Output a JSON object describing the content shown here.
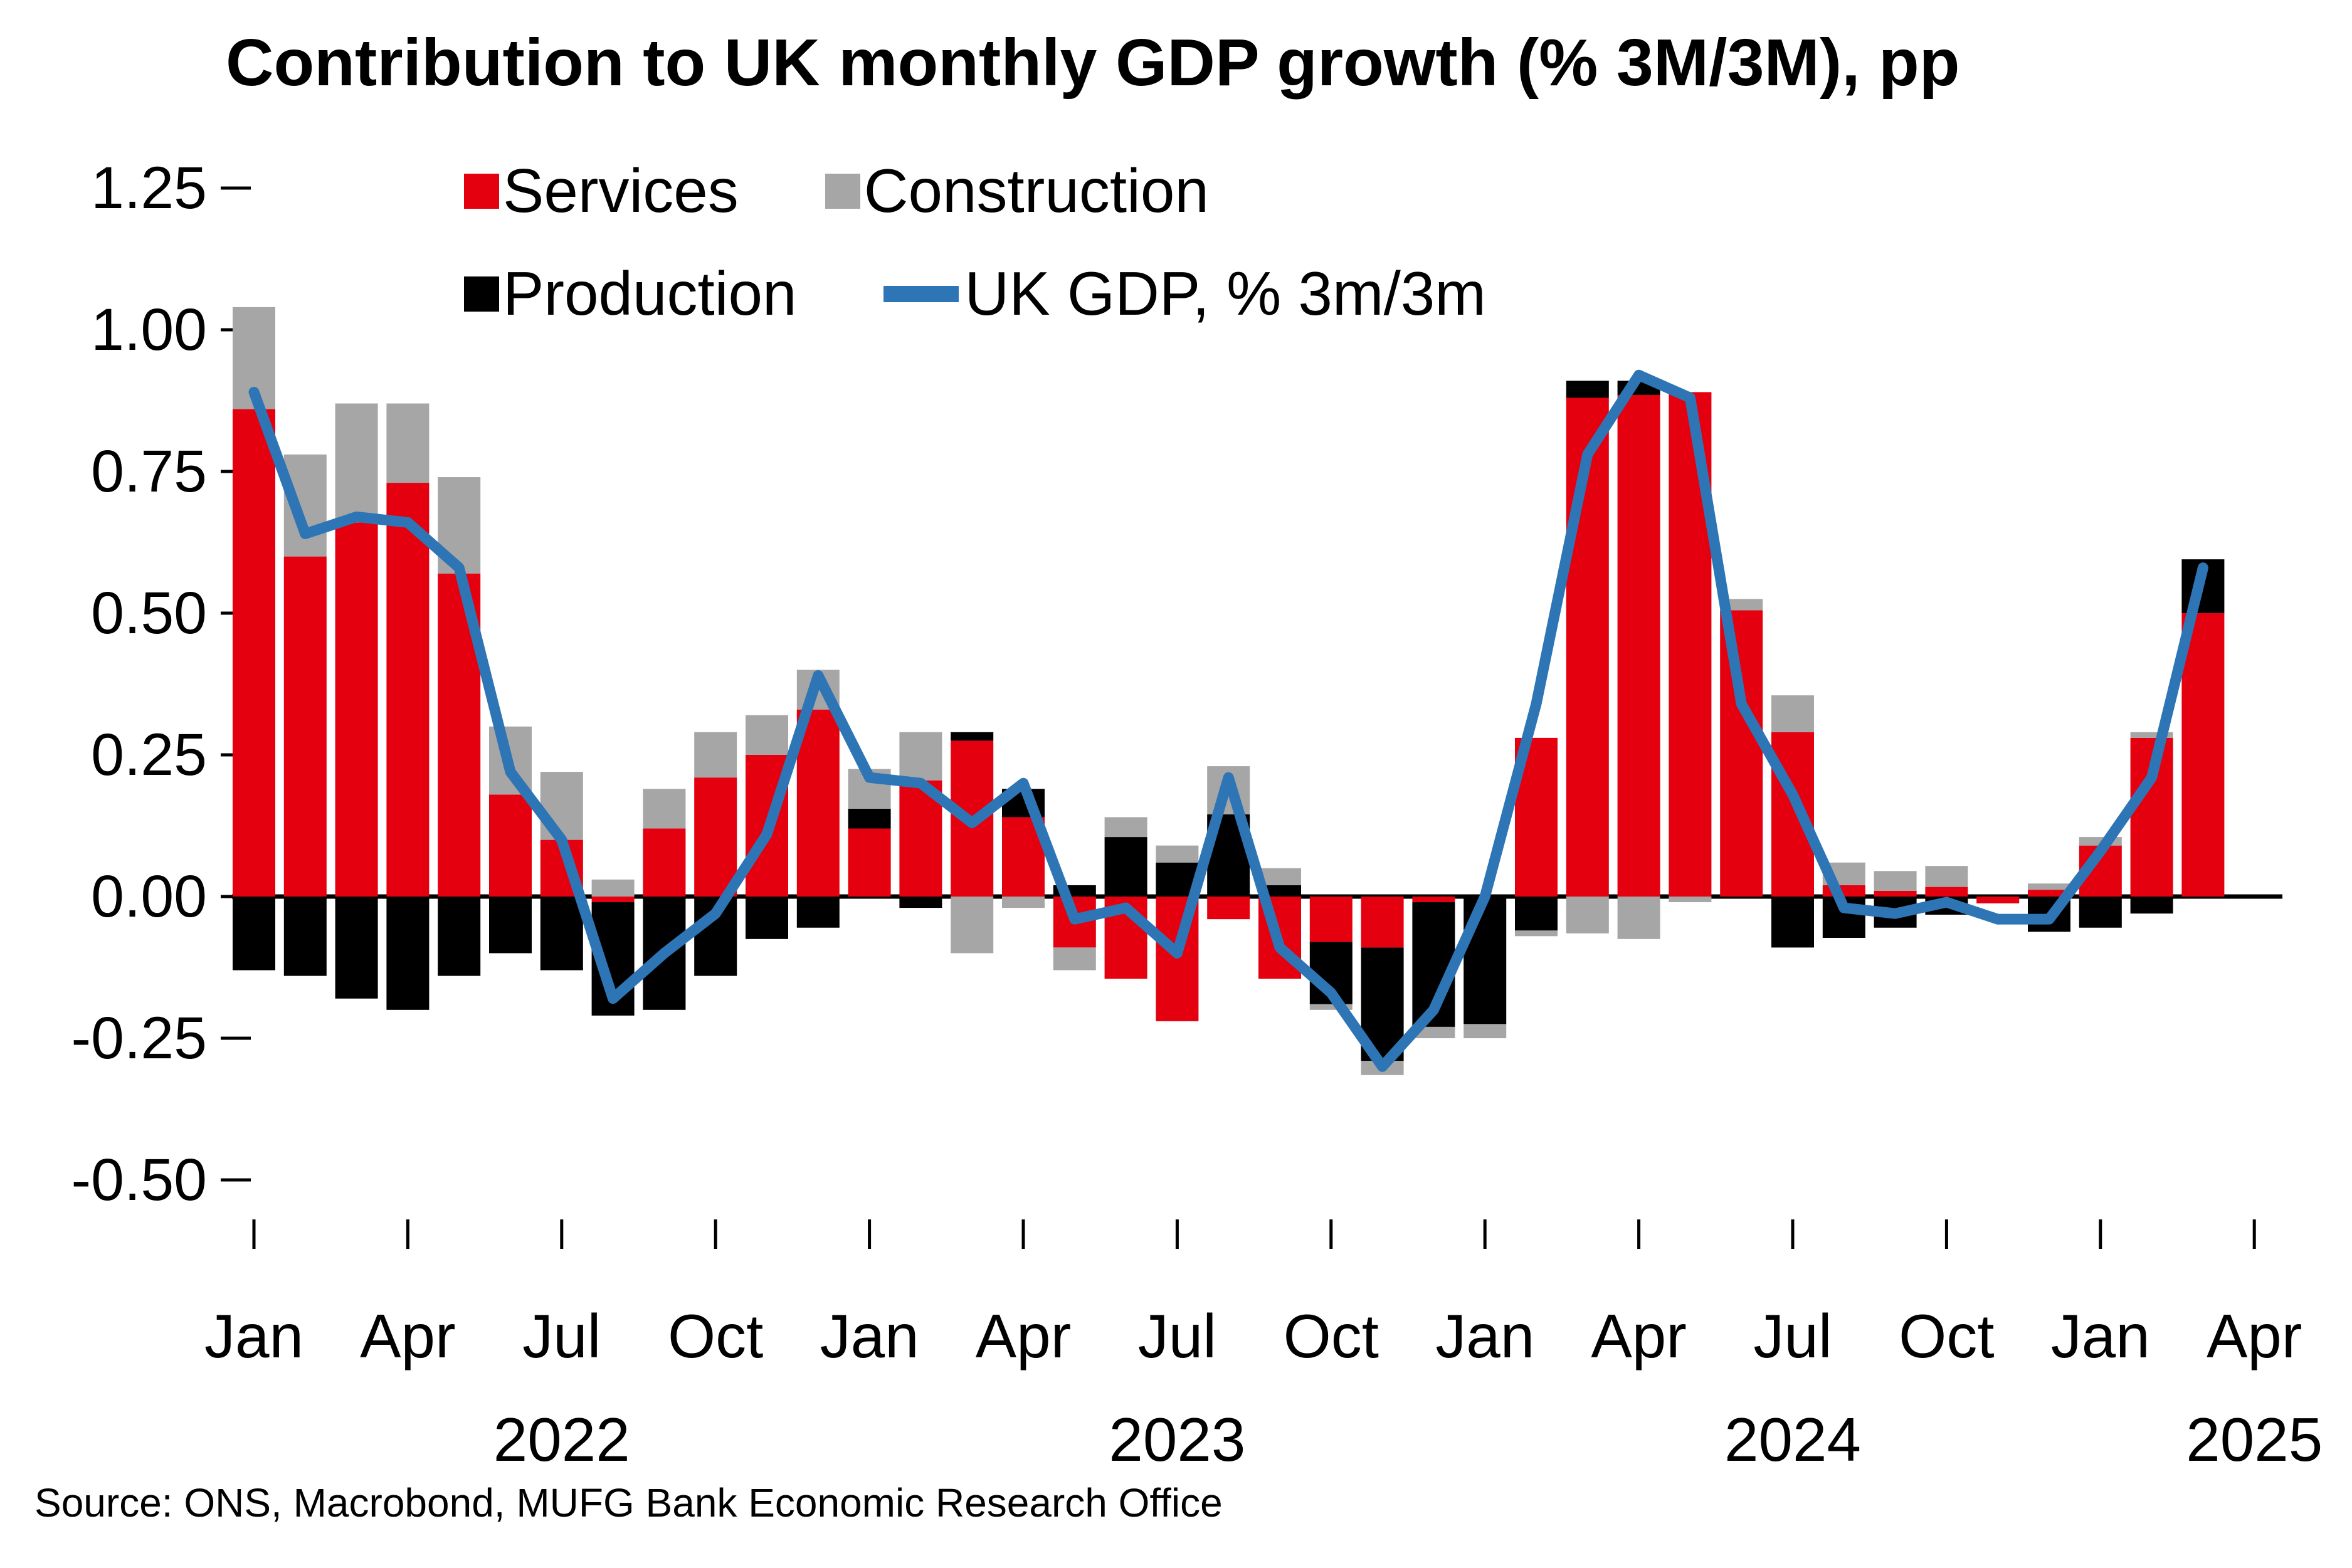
{
  "title": "Contribution to UK monthly GDP growth (% 3M/3M), pp",
  "source": "Source: ONS, Macrobond, MUFG Bank Economic Research Office",
  "colors": {
    "services": "#e4000f",
    "construction": "#a6a6a6",
    "production": "#000000",
    "gdp_line": "#2e75b6",
    "axis": "#000000",
    "background": "#ffffff"
  },
  "legend": {
    "services": "Services",
    "construction": "Construction",
    "production": "Production",
    "gdp": "UK GDP, % 3m/3m"
  },
  "chart_data": {
    "type": "bar",
    "stacked": true,
    "title": "Contribution to UK monthly GDP growth (% 3M/3M), pp",
    "xlabel": "",
    "ylabel": "",
    "ylim": [
      -0.5,
      1.25
    ],
    "grid": false,
    "legend_position": "top-left-inside",
    "categories": [
      "Jan 2022",
      "Feb 2022",
      "Mar 2022",
      "Apr 2022",
      "May 2022",
      "Jun 2022",
      "Jul 2022",
      "Aug 2022",
      "Sep 2022",
      "Oct 2022",
      "Nov 2022",
      "Dec 2022",
      "Jan 2023",
      "Feb 2023",
      "Mar 2023",
      "Apr 2023",
      "May 2023",
      "Jun 2023",
      "Jul 2023",
      "Aug 2023",
      "Sep 2023",
      "Oct 2023",
      "Nov 2023",
      "Dec 2023",
      "Jan 2024",
      "Feb 2024",
      "Mar 2024",
      "Apr 2024",
      "May 2024",
      "Jun 2024",
      "Jul 2024",
      "Aug 2024",
      "Sep 2024",
      "Oct 2024",
      "Nov 2024",
      "Dec 2024",
      "Jan 2025",
      "Feb 2025",
      "Mar 2025"
    ],
    "series": [
      {
        "name": "Services",
        "values": [
          0.86,
          0.6,
          0.66,
          0.73,
          0.57,
          0.18,
          0.1,
          -0.01,
          0.12,
          0.21,
          0.25,
          0.33,
          0.12,
          0.205,
          0.275,
          0.14,
          -0.09,
          -0.145,
          -0.22,
          -0.04,
          -0.145,
          -0.08,
          -0.09,
          -0.01,
          0.0,
          0.28,
          0.88,
          0.885,
          0.89,
          0.505,
          0.29,
          0.02,
          0.01,
          0.017,
          -0.012,
          0.012,
          0.09,
          0.28,
          0.5
        ]
      },
      {
        "name": "Production",
        "values": [
          -0.13,
          -0.14,
          -0.18,
          -0.2,
          -0.14,
          -0.1,
          -0.13,
          -0.2,
          -0.2,
          -0.14,
          -0.075,
          -0.055,
          0.035,
          -0.02,
          0.015,
          0.05,
          0.02,
          0.105,
          0.06,
          0.145,
          0.02,
          -0.11,
          -0.2,
          -0.22,
          -0.225,
          -0.06,
          0.03,
          0.025,
          0.0,
          0.0,
          -0.09,
          -0.073,
          -0.055,
          -0.032,
          0.0,
          -0.062,
          -0.055,
          -0.03,
          0.095
        ]
      },
      {
        "name": "Construction",
        "values": [
          0.18,
          0.18,
          0.21,
          0.14,
          0.17,
          0.12,
          0.12,
          0.03,
          0.07,
          0.08,
          0.07,
          0.07,
          0.07,
          0.085,
          -0.1,
          -0.02,
          -0.04,
          0.035,
          0.03,
          0.085,
          0.03,
          -0.01,
          -0.025,
          -0.02,
          -0.025,
          -0.01,
          -0.065,
          -0.075,
          -0.01,
          0.02,
          0.065,
          0.04,
          0.035,
          0.037,
          0.0,
          0.011,
          0.015,
          0.01,
          0.0
        ]
      }
    ],
    "line_series": {
      "name": "UK GDP, % 3m/3m",
      "values": [
        0.89,
        0.64,
        0.67,
        0.66,
        0.58,
        0.22,
        0.1,
        -0.18,
        -0.1,
        -0.03,
        0.11,
        0.39,
        0.21,
        0.2,
        0.13,
        0.2,
        -0.04,
        -0.02,
        -0.1,
        0.21,
        -0.09,
        -0.17,
        -0.3,
        -0.2,
        0.0,
        0.34,
        0.78,
        0.92,
        0.88,
        0.34,
        0.18,
        -0.02,
        -0.03,
        -0.01,
        -0.04,
        -0.04,
        0.08,
        0.21,
        0.58
      ]
    },
    "yticks": {
      "values": [
        1.25,
        1.0,
        0.75,
        0.5,
        0.25,
        0.0,
        -0.25,
        -0.5
      ],
      "labels": [
        "1.25",
        "1.00",
        "0.75",
        "0.50",
        "0.25",
        "0.00",
        "-0.25",
        "-0.50"
      ]
    },
    "xticks": {
      "month_indices": [
        0,
        3,
        6,
        9,
        12,
        15,
        18,
        21,
        24,
        27,
        30,
        33,
        36,
        39
      ],
      "month_labels": [
        "Jan",
        "Apr",
        "Jul",
        "Oct",
        "Jan",
        "Apr",
        "Jul",
        "Oct",
        "Jan",
        "Apr",
        "Jul",
        "Oct",
        "Jan",
        "Apr"
      ],
      "year_ticks": [
        {
          "index": 6,
          "label": "2022"
        },
        {
          "index": 18,
          "label": "2023"
        },
        {
          "index": 30,
          "label": "2024"
        },
        {
          "index": 39,
          "label": "2025"
        }
      ]
    }
  }
}
